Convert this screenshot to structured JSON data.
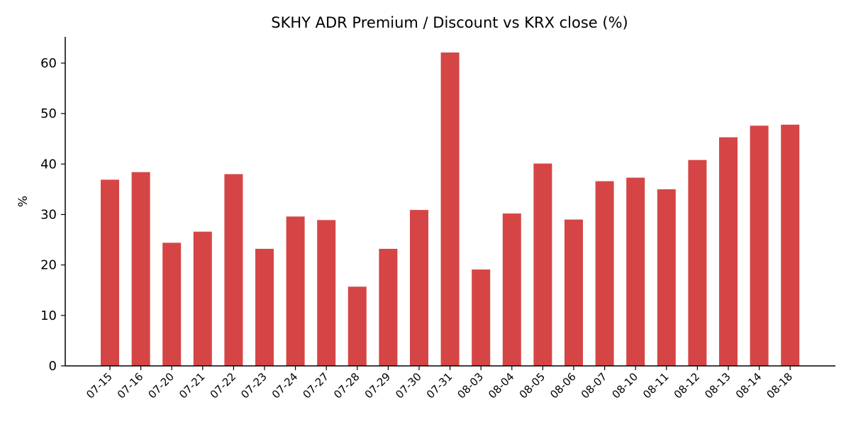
{
  "chart_data": {
    "type": "bar",
    "title": "SKHY ADR Premium / Discount vs KRX close (%)",
    "xlabel": "",
    "ylabel": "%",
    "categories": [
      "07-15",
      "07-16",
      "07-20",
      "07-21",
      "07-22",
      "07-23",
      "07-24",
      "07-27",
      "07-28",
      "07-29",
      "07-30",
      "07-31",
      "08-03",
      "08-04",
      "08-05",
      "08-06",
      "08-07",
      "08-10",
      "08-11",
      "08-12",
      "08-13",
      "08-14",
      "08-18"
    ],
    "values": [
      36.9,
      38.4,
      24.4,
      26.6,
      38.0,
      23.2,
      29.6,
      28.9,
      15.7,
      23.2,
      30.9,
      62.1,
      19.1,
      30.2,
      40.1,
      29.0,
      36.6,
      37.3,
      35.0,
      40.8,
      45.3,
      47.6,
      47.8
    ],
    "ylim": [
      0,
      65.2
    ],
    "yticks": [
      0,
      10,
      20,
      30,
      40,
      50,
      60
    ],
    "bar_color": "#d64545",
    "grid": false,
    "legend": "none"
  }
}
